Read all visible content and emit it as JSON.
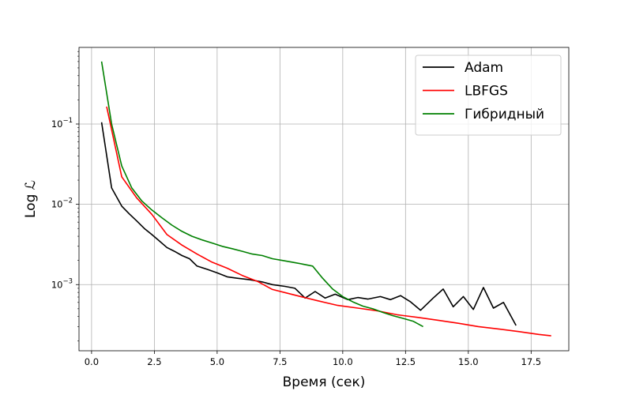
{
  "chart_data": {
    "type": "line",
    "title": "",
    "xlabel": "Время (сек)",
    "ylabel": "Log ℒ",
    "xlim": [
      -0.5,
      19.0
    ],
    "ylim": [
      0.00015,
      0.9
    ],
    "yscale": "log",
    "grid": true,
    "legend_position": "top-right",
    "x_ticks": [
      {
        "value": 0.0,
        "label": "0.0"
      },
      {
        "value": 2.5,
        "label": "2.5"
      },
      {
        "value": 5.0,
        "label": "5.0"
      },
      {
        "value": 7.5,
        "label": "7.5"
      },
      {
        "value": 10.0,
        "label": "10.0"
      },
      {
        "value": 12.5,
        "label": "12.5"
      },
      {
        "value": 15.0,
        "label": "15.0"
      },
      {
        "value": 17.5,
        "label": "17.5"
      }
    ],
    "y_ticks": [
      {
        "value": 0.1,
        "base": "10",
        "exp": "−1"
      },
      {
        "value": 0.01,
        "base": "10",
        "exp": "−2"
      },
      {
        "value": 0.001,
        "base": "10",
        "exp": "−3"
      }
    ],
    "series": [
      {
        "name": "Adam",
        "color": "#000000",
        "points": [
          [
            0.4,
            0.105
          ],
          [
            0.8,
            0.016
          ],
          [
            1.2,
            0.0095
          ],
          [
            1.5,
            0.0076
          ],
          [
            1.8,
            0.0062
          ],
          [
            2.1,
            0.005
          ],
          [
            2.4,
            0.0042
          ],
          [
            2.7,
            0.0035
          ],
          [
            3.0,
            0.0029
          ],
          [
            3.3,
            0.0026
          ],
          [
            3.6,
            0.0023
          ],
          [
            3.9,
            0.0021
          ],
          [
            4.2,
            0.0017
          ],
          [
            4.6,
            0.00155
          ],
          [
            5.0,
            0.0014
          ],
          [
            5.4,
            0.00125
          ],
          [
            5.8,
            0.0012
          ],
          [
            6.3,
            0.00115
          ],
          [
            6.8,
            0.00108
          ],
          [
            7.2,
            0.001
          ],
          [
            7.7,
            0.00095
          ],
          [
            8.1,
            0.0009
          ],
          [
            8.5,
            0.00068
          ],
          [
            8.9,
            0.00082
          ],
          [
            9.3,
            0.00068
          ],
          [
            9.7,
            0.00076
          ],
          [
            10.2,
            0.00065
          ],
          [
            10.6,
            0.00069
          ],
          [
            11.0,
            0.00066
          ],
          [
            11.5,
            0.00071
          ],
          [
            11.9,
            0.00065
          ],
          [
            12.3,
            0.00073
          ],
          [
            12.7,
            0.00061
          ],
          [
            13.1,
            0.00048
          ],
          [
            13.6,
            0.00068
          ],
          [
            14.0,
            0.00088
          ],
          [
            14.4,
            0.00053
          ],
          [
            14.8,
            0.00071
          ],
          [
            15.2,
            0.00049
          ],
          [
            15.6,
            0.00092
          ],
          [
            16.0,
            0.00051
          ],
          [
            16.4,
            0.0006
          ],
          [
            16.9,
            0.00031
          ]
        ]
      },
      {
        "name": "LBFGS",
        "color": "#ff0000",
        "points": [
          [
            0.6,
            0.165
          ],
          [
            1.2,
            0.022
          ],
          [
            1.8,
            0.012
          ],
          [
            2.4,
            0.0075
          ],
          [
            3.0,
            0.0042
          ],
          [
            3.6,
            0.0031
          ],
          [
            4.2,
            0.0024
          ],
          [
            4.8,
            0.0019
          ],
          [
            5.4,
            0.0016
          ],
          [
            6.0,
            0.0013
          ],
          [
            6.6,
            0.0011
          ],
          [
            7.2,
            0.00087
          ],
          [
            7.8,
            0.00078
          ],
          [
            8.4,
            0.0007
          ],
          [
            9.0,
            0.00063
          ],
          [
            9.8,
            0.00055
          ],
          [
            10.6,
            0.00051
          ],
          [
            11.4,
            0.00047
          ],
          [
            12.2,
            0.00042
          ],
          [
            13.0,
            0.00039
          ],
          [
            13.8,
            0.00036
          ],
          [
            14.6,
            0.00033
          ],
          [
            15.4,
            0.0003
          ],
          [
            16.2,
            0.00028
          ],
          [
            17.0,
            0.00026
          ],
          [
            17.8,
            0.00024
          ],
          [
            18.3,
            0.00023
          ]
        ]
      },
      {
        "name": "Гибридный",
        "color": "#008000",
        "points": [
          [
            0.4,
            0.6
          ],
          [
            0.8,
            0.1
          ],
          [
            1.2,
            0.03
          ],
          [
            1.6,
            0.016
          ],
          [
            2.0,
            0.011
          ],
          [
            2.4,
            0.0085
          ],
          [
            2.8,
            0.0068
          ],
          [
            3.2,
            0.0055
          ],
          [
            3.6,
            0.0046
          ],
          [
            4.0,
            0.004
          ],
          [
            4.4,
            0.0036
          ],
          [
            4.8,
            0.0033
          ],
          [
            5.2,
            0.003
          ],
          [
            5.6,
            0.0028
          ],
          [
            6.0,
            0.0026
          ],
          [
            6.4,
            0.0024
          ],
          [
            6.8,
            0.0023
          ],
          [
            7.2,
            0.0021
          ],
          [
            7.6,
            0.002
          ],
          [
            8.0,
            0.0019
          ],
          [
            8.4,
            0.0018
          ],
          [
            8.8,
            0.0017
          ],
          [
            9.2,
            0.0012
          ],
          [
            9.6,
            0.00088
          ],
          [
            10.0,
            0.00071
          ],
          [
            10.4,
            0.00061
          ],
          [
            10.8,
            0.00054
          ],
          [
            11.2,
            0.0005
          ],
          [
            11.6,
            0.00045
          ],
          [
            12.0,
            0.00041
          ],
          [
            12.4,
            0.00038
          ],
          [
            12.8,
            0.00035
          ],
          [
            13.2,
            0.0003
          ]
        ]
      }
    ]
  }
}
